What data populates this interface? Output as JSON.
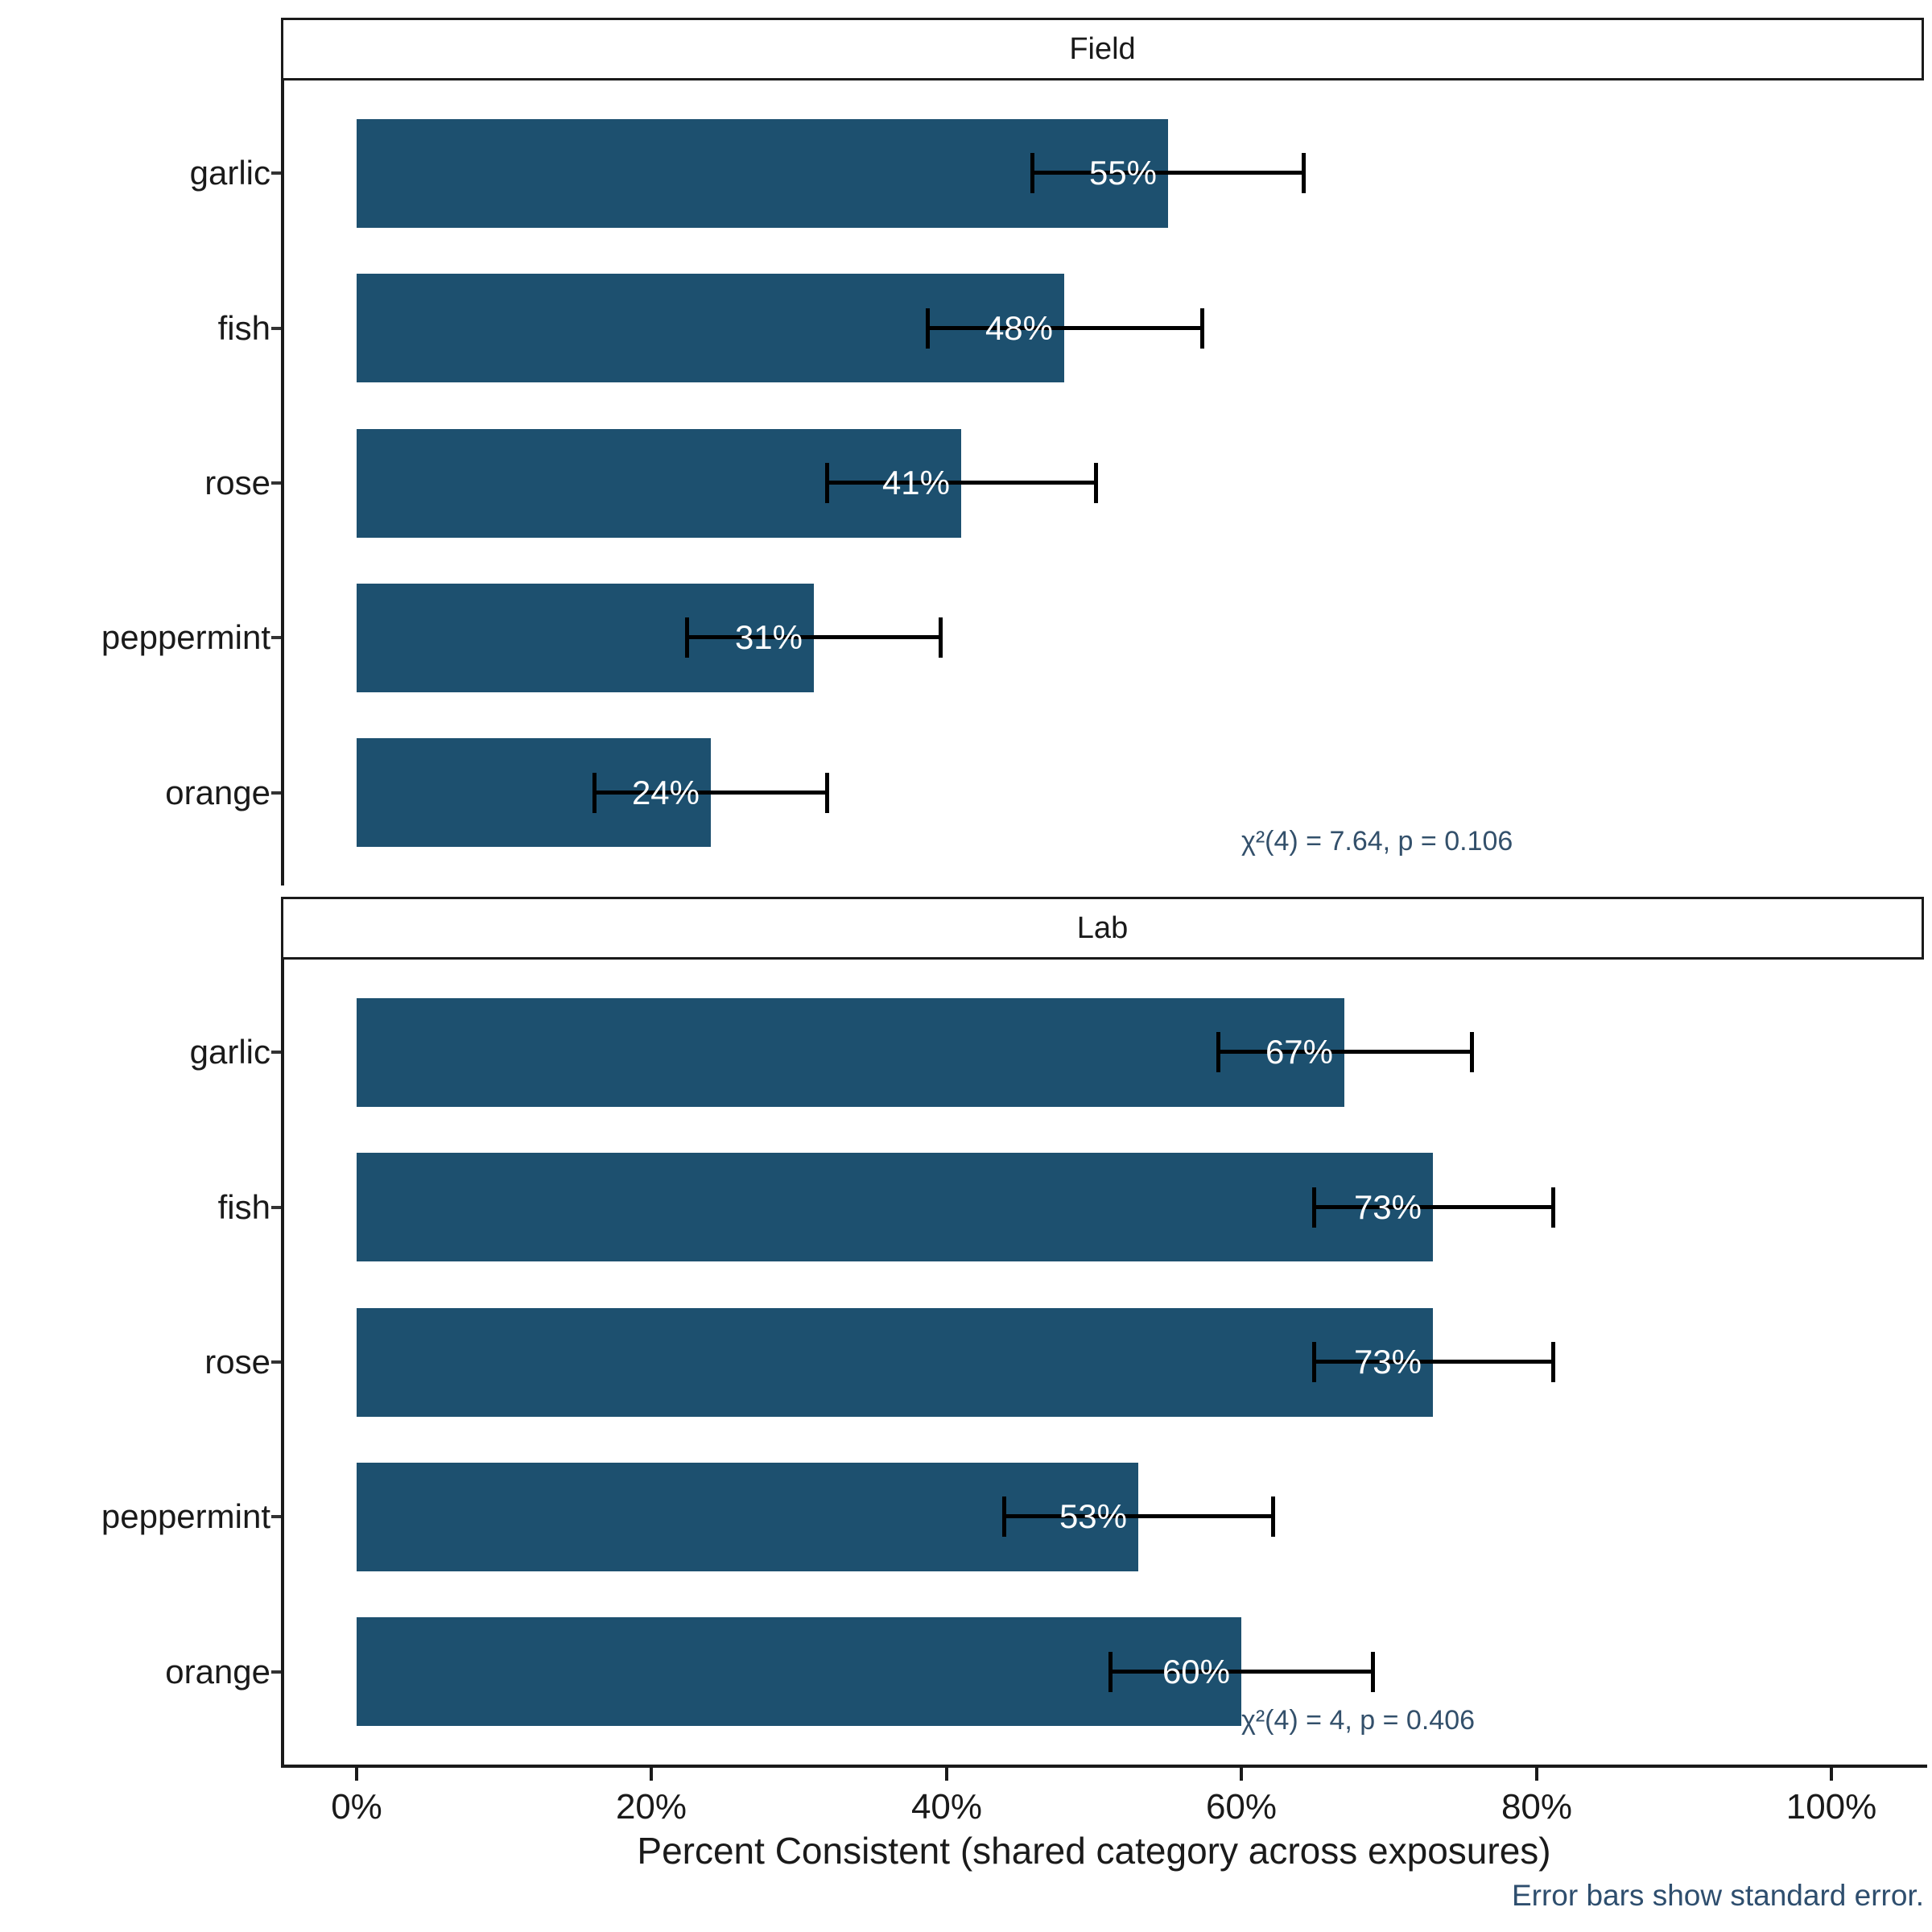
{
  "chart_data": {
    "type": "bar",
    "orientation": "horizontal",
    "xlabel": "Percent Consistent (shared category across exposures)",
    "caption": "Error bars show standard error.",
    "categories": [
      "garlic",
      "fish",
      "rose",
      "peppermint",
      "orange"
    ],
    "x_axis": {
      "tick_values": [
        0,
        20,
        40,
        60,
        80,
        100
      ],
      "tick_labels": [
        "0%",
        "20%",
        "40%",
        "60%",
        "80%",
        "100%"
      ],
      "range": [
        0,
        100
      ]
    },
    "facets": [
      {
        "label": "Field",
        "values": [
          55,
          48,
          41,
          31,
          24
        ],
        "bar_labels": [
          "55%",
          "48%",
          "41%",
          "31%",
          "24%"
        ],
        "se": [
          9.2,
          9.3,
          9.1,
          8.6,
          7.9
        ],
        "annotation": "χ²(4) = 7.64, p = 0.106"
      },
      {
        "label": "Lab",
        "values": [
          67,
          73,
          73,
          53,
          60
        ],
        "bar_labels": [
          "67%",
          "73%",
          "73%",
          "53%",
          "60%"
        ],
        "se": [
          8.6,
          8.1,
          8.1,
          9.1,
          8.9
        ],
        "annotation": "χ²(4) = 4, p = 0.406"
      }
    ],
    "colors": {
      "bar": "#1d506f",
      "error_bar": "#000000",
      "annotation": "#33506b",
      "caption": "#2e4e6e",
      "axis": "#1a1a1a"
    }
  }
}
